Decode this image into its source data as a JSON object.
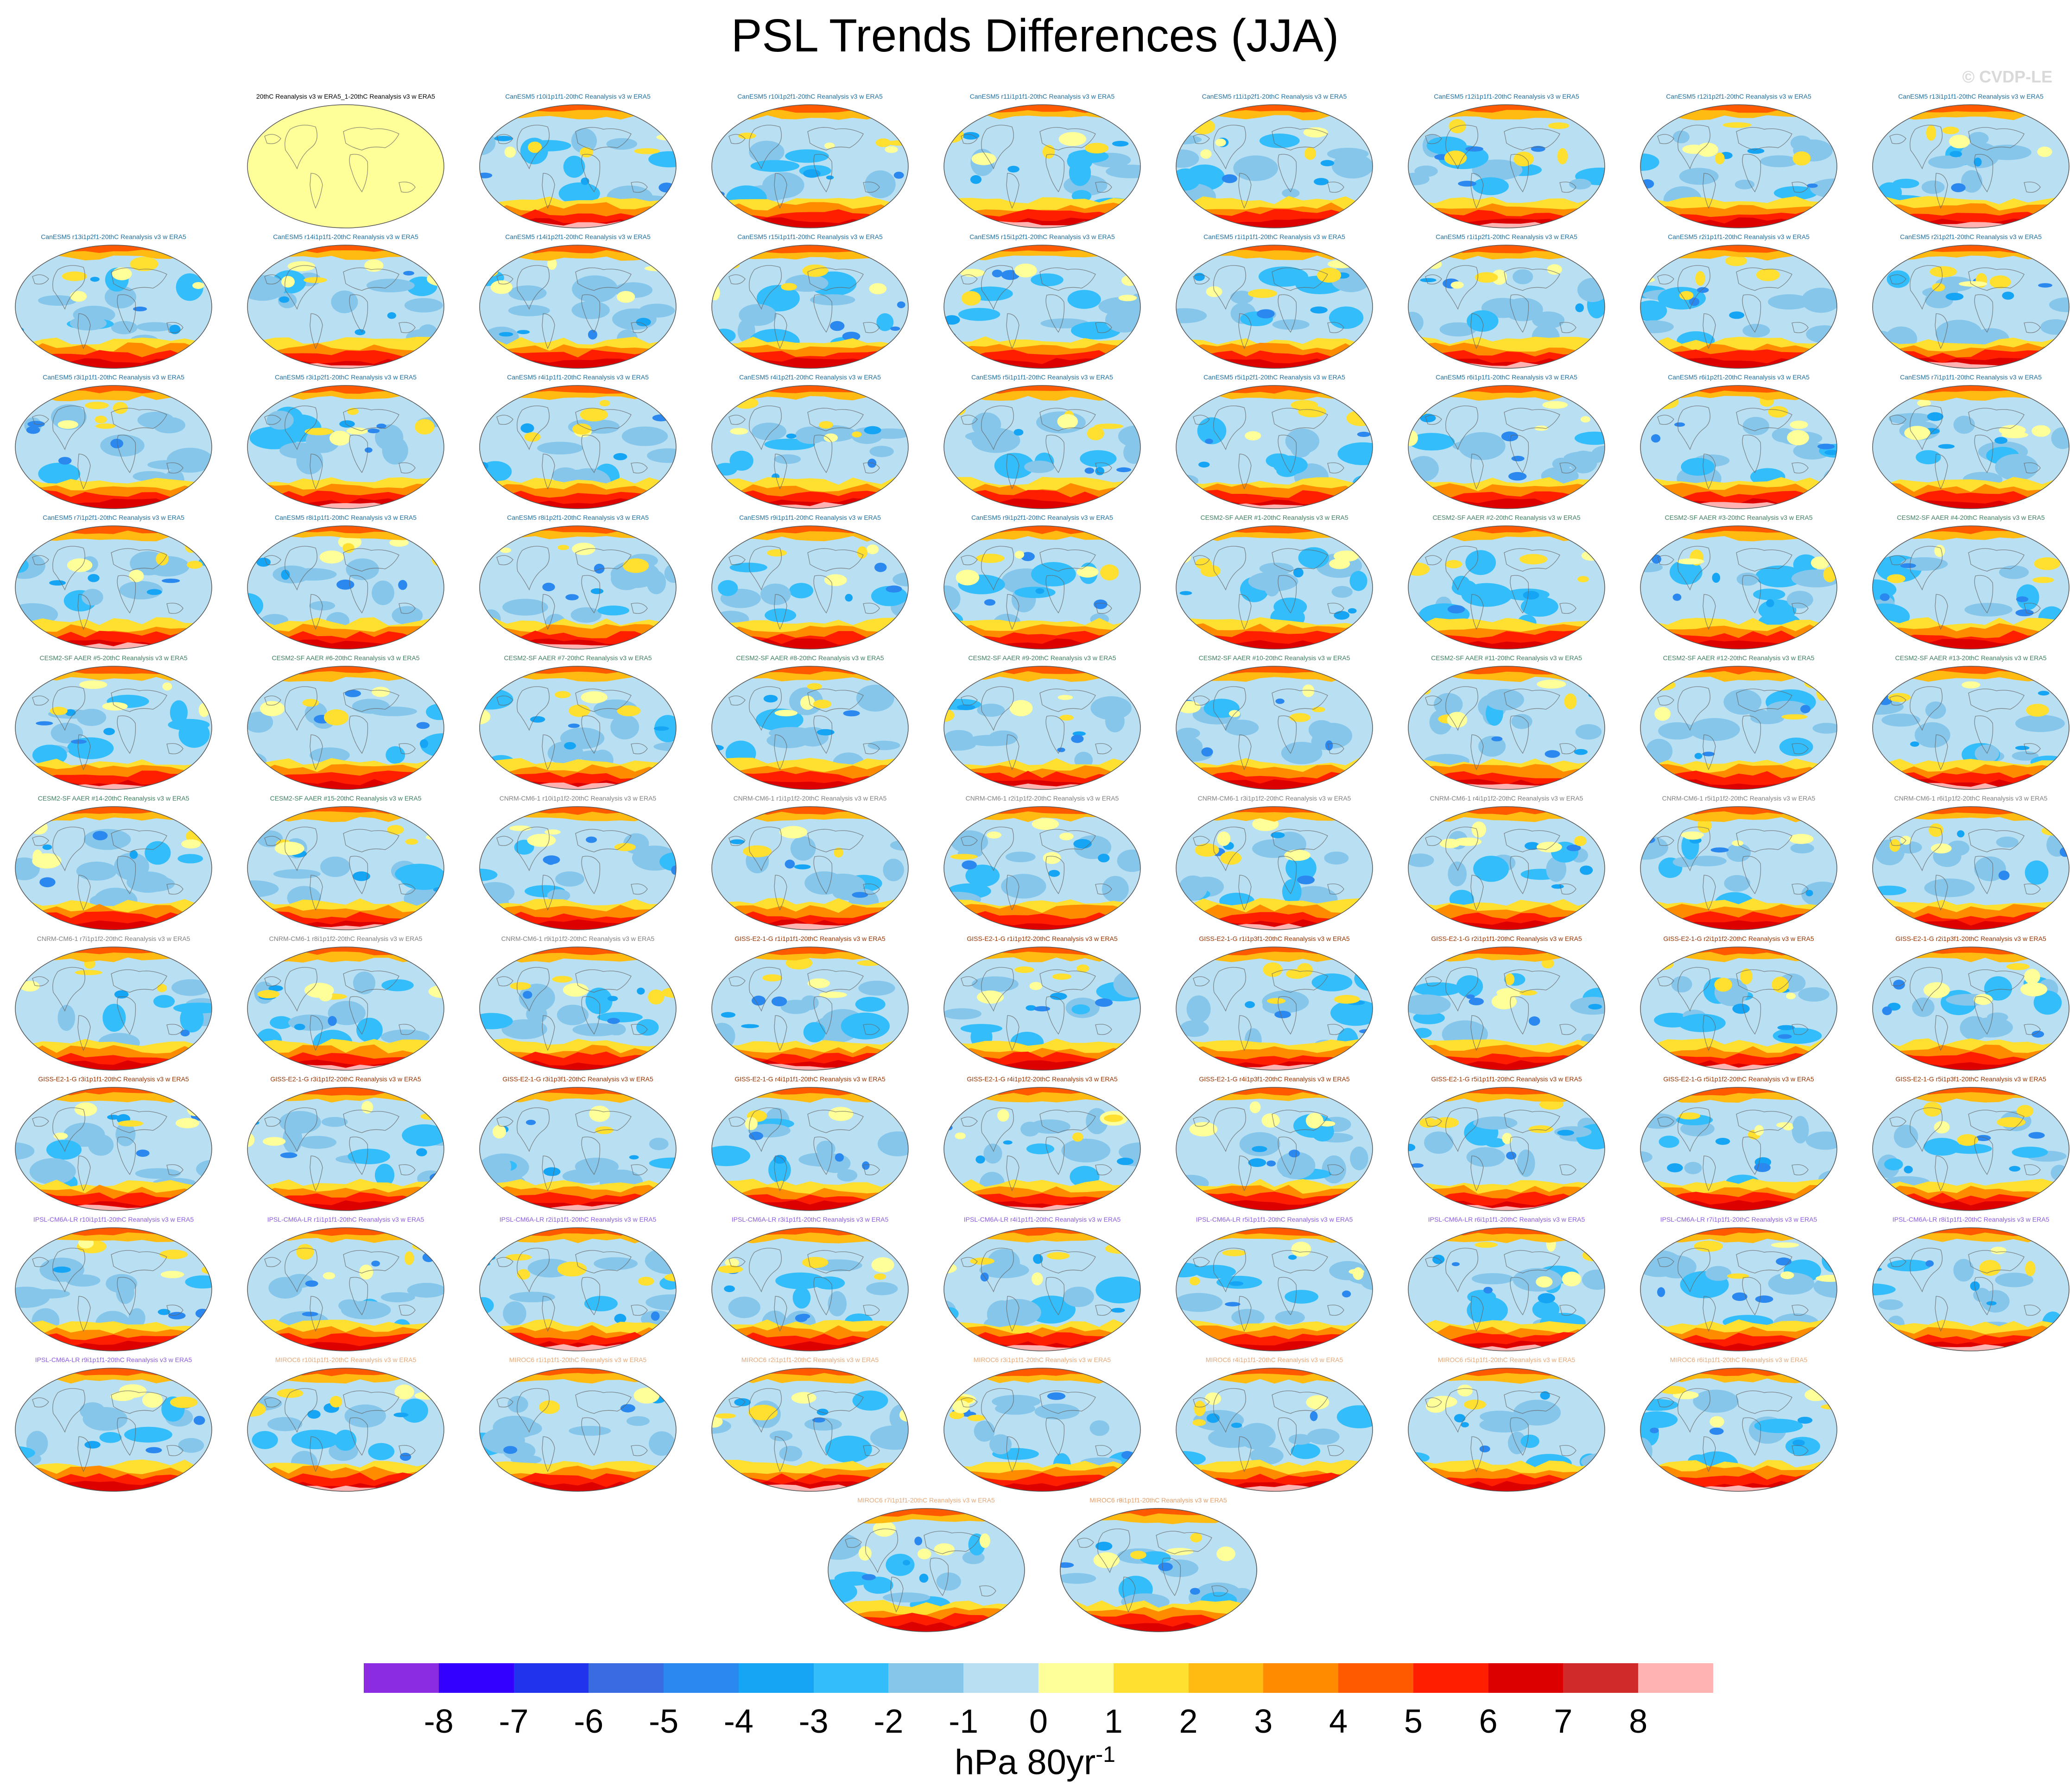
{
  "title": "PSL Trends Differences (JJA)",
  "credit": "© CVDP-LE",
  "units": {
    "base": "hPa 80yr",
    "exponent": "-1"
  },
  "colorbar": {
    "colors": [
      "#8b2be2",
      "#3300ff",
      "#2233ee",
      "#3a6be0",
      "#2b88ee",
      "#16a5f5",
      "#33bdfa",
      "#85c6ea",
      "#b8dff2",
      "#ffff99",
      "#ffe030",
      "#ffbb11",
      "#ff8c00",
      "#ff5a00",
      "#ff1f00",
      "#dd0000",
      "#d12a2a",
      "#ffb3b3"
    ],
    "ticks": [
      "-8",
      "-7",
      "-6",
      "-5",
      "-4",
      "-3",
      "-2",
      "-1",
      "0",
      "1",
      "2",
      "3",
      "4",
      "5",
      "6",
      "7",
      "8"
    ]
  },
  "panels": [
    {
      "label": "20thC Reanalysis v3 w ERA5_1-20thC Reanalysis v3 w ERA5",
      "group": "obs"
    },
    {
      "label": "CanESM5 r10i1p1f1-20thC Reanalysis v3 w ERA5",
      "group": "canesm"
    },
    {
      "label": "CanESM5 r10i1p2f1-20thC Reanalysis v3 w ERA5",
      "group": "canesm"
    },
    {
      "label": "CanESM5 r11i1p1f1-20thC Reanalysis v3 w ERA5",
      "group": "canesm"
    },
    {
      "label": "CanESM5 r11i1p2f1-20thC Reanalysis v3 w ERA5",
      "group": "canesm"
    },
    {
      "label": "CanESM5 r12i1p1f1-20thC Reanalysis v3 w ERA5",
      "group": "canesm"
    },
    {
      "label": "CanESM5 r12i1p2f1-20thC Reanalysis v3 w ERA5",
      "group": "canesm"
    },
    {
      "label": "CanESM5 r13i1p1f1-20thC Reanalysis v3 w ERA5",
      "group": "canesm"
    },
    {
      "label": "CanESM5 r13i1p2f1-20thC Reanalysis v3 w ERA5",
      "group": "canesm"
    },
    {
      "label": "CanESM5 r14i1p1f1-20thC Reanalysis v3 w ERA5",
      "group": "canesm"
    },
    {
      "label": "CanESM5 r14i1p2f1-20thC Reanalysis v3 w ERA5",
      "group": "canesm"
    },
    {
      "label": "CanESM5 r15i1p1f1-20thC Reanalysis v3 w ERA5",
      "group": "canesm"
    },
    {
      "label": "CanESM5 r15i1p2f1-20thC Reanalysis v3 w ERA5",
      "group": "canesm"
    },
    {
      "label": "CanESM5 r1i1p1f1-20thC Reanalysis v3 w ERA5",
      "group": "canesm"
    },
    {
      "label": "CanESM5 r1i1p2f1-20thC Reanalysis v3 w ERA5",
      "group": "canesm"
    },
    {
      "label": "CanESM5 r2i1p1f1-20thC Reanalysis v3 w ERA5",
      "group": "canesm"
    },
    {
      "label": "CanESM5 r2i1p2f1-20thC Reanalysis v3 w ERA5",
      "group": "canesm"
    },
    {
      "label": "CanESM5 r3i1p1f1-20thC Reanalysis v3 w ERA5",
      "group": "canesm"
    },
    {
      "label": "CanESM5 r3i1p2f1-20thC Reanalysis v3 w ERA5",
      "group": "canesm"
    },
    {
      "label": "CanESM5 r4i1p1f1-20thC Reanalysis v3 w ERA5",
      "group": "canesm"
    },
    {
      "label": "CanESM5 r4i1p2f1-20thC Reanalysis v3 w ERA5",
      "group": "canesm"
    },
    {
      "label": "CanESM5 r5i1p1f1-20thC Reanalysis v3 w ERA5",
      "group": "canesm"
    },
    {
      "label": "CanESM5 r5i1p2f1-20thC Reanalysis v3 w ERA5",
      "group": "canesm"
    },
    {
      "label": "CanESM5 r6i1p1f1-20thC Reanalysis v3 w ERA5",
      "group": "canesm"
    },
    {
      "label": "CanESM5 r6i1p2f1-20thC Reanalysis v3 w ERA5",
      "group": "canesm"
    },
    {
      "label": "CanESM5 r7i1p1f1-20thC Reanalysis v3 w ERA5",
      "group": "canesm"
    },
    {
      "label": "CanESM5 r7i1p2f1-20thC Reanalysis v3 w ERA5",
      "group": "canesm"
    },
    {
      "label": "CanESM5 r8i1p1f1-20thC Reanalysis v3 w ERA5",
      "group": "canesm"
    },
    {
      "label": "CanESM5 r8i1p2f1-20thC Reanalysis v3 w ERA5",
      "group": "canesm"
    },
    {
      "label": "CanESM5 r9i1p1f1-20thC Reanalysis v3 w ERA5",
      "group": "canesm"
    },
    {
      "label": "CanESM5 r9i1p2f1-20thC Reanalysis v3 w ERA5",
      "group": "canesm"
    },
    {
      "label": "CESM2-SF AAER #1-20thC Reanalysis v3 w ERA5",
      "group": "cesm"
    },
    {
      "label": "CESM2-SF AAER #2-20thC Reanalysis v3 w ERA5",
      "group": "cesm"
    },
    {
      "label": "CESM2-SF AAER #3-20thC Reanalysis v3 w ERA5",
      "group": "cesm"
    },
    {
      "label": "CESM2-SF AAER #4-20thC Reanalysis v3 w ERA5",
      "group": "cesm"
    },
    {
      "label": "CESM2-SF AAER #5-20thC Reanalysis v3 w ERA5",
      "group": "cesm"
    },
    {
      "label": "CESM2-SF AAER #6-20thC Reanalysis v3 w ERA5",
      "group": "cesm"
    },
    {
      "label": "CESM2-SF AAER #7-20thC Reanalysis v3 w ERA5",
      "group": "cesm"
    },
    {
      "label": "CESM2-SF AAER #8-20thC Reanalysis v3 w ERA5",
      "group": "cesm"
    },
    {
      "label": "CESM2-SF AAER #9-20thC Reanalysis v3 w ERA5",
      "group": "cesm"
    },
    {
      "label": "CESM2-SF AAER #10-20thC Reanalysis v3 w ERA5",
      "group": "cesm"
    },
    {
      "label": "CESM2-SF AAER #11-20thC Reanalysis v3 w ERA5",
      "group": "cesm"
    },
    {
      "label": "CESM2-SF AAER #12-20thC Reanalysis v3 w ERA5",
      "group": "cesm"
    },
    {
      "label": "CESM2-SF AAER #13-20thC Reanalysis v3 w ERA5",
      "group": "cesm"
    },
    {
      "label": "CESM2-SF AAER #14-20thC Reanalysis v3 w ERA5",
      "group": "cesm"
    },
    {
      "label": "CESM2-SF AAER #15-20thC Reanalysis v3 w ERA5",
      "group": "cesm"
    },
    {
      "label": "CNRM-CM6-1 r10i1p1f2-20thC Reanalysis v3 w ERA5",
      "group": "cnrm"
    },
    {
      "label": "CNRM-CM6-1 r1i1p1f2-20thC Reanalysis v3 w ERA5",
      "group": "cnrm"
    },
    {
      "label": "CNRM-CM6-1 r2i1p1f2-20thC Reanalysis v3 w ERA5",
      "group": "cnrm"
    },
    {
      "label": "CNRM-CM6-1 r3i1p1f2-20thC Reanalysis v3 w ERA5",
      "group": "cnrm"
    },
    {
      "label": "CNRM-CM6-1 r4i1p1f2-20thC Reanalysis v3 w ERA5",
      "group": "cnrm"
    },
    {
      "label": "CNRM-CM6-1 r5i1p1f2-20thC Reanalysis v3 w ERA5",
      "group": "cnrm"
    },
    {
      "label": "CNRM-CM6-1 r6i1p1f2-20thC Reanalysis v3 w ERA5",
      "group": "cnrm"
    },
    {
      "label": "CNRM-CM6-1 r7i1p1f2-20thC Reanalysis v3 w ERA5",
      "group": "cnrm"
    },
    {
      "label": "CNRM-CM6-1 r8i1p1f2-20thC Reanalysis v3 w ERA5",
      "group": "cnrm"
    },
    {
      "label": "CNRM-CM6-1 r9i1p1f2-20thC Reanalysis v3 w ERA5",
      "group": "cnrm"
    },
    {
      "label": "GISS-E2-1-G r1i1p1f1-20thC Reanalysis v3 w ERA5",
      "group": "giss"
    },
    {
      "label": "GISS-E2-1-G r1i1p1f2-20thC Reanalysis v3 w ERA5",
      "group": "giss"
    },
    {
      "label": "GISS-E2-1-G r1i1p3f1-20thC Reanalysis v3 w ERA5",
      "group": "giss"
    },
    {
      "label": "GISS-E2-1-G r2i1p1f1-20thC Reanalysis v3 w ERA5",
      "group": "giss"
    },
    {
      "label": "GISS-E2-1-G r2i1p1f2-20thC Reanalysis v3 w ERA5",
      "group": "giss"
    },
    {
      "label": "GISS-E2-1-G r2i1p3f1-20thC Reanalysis v3 w ERA5",
      "group": "giss"
    },
    {
      "label": "GISS-E2-1-G r3i1p1f1-20thC Reanalysis v3 w ERA5",
      "group": "giss"
    },
    {
      "label": "GISS-E2-1-G r3i1p1f2-20thC Reanalysis v3 w ERA5",
      "group": "giss"
    },
    {
      "label": "GISS-E2-1-G r3i1p3f1-20thC Reanalysis v3 w ERA5",
      "group": "giss"
    },
    {
      "label": "GISS-E2-1-G r4i1p1f1-20thC Reanalysis v3 w ERA5",
      "group": "giss"
    },
    {
      "label": "GISS-E2-1-G r4i1p1f2-20thC Reanalysis v3 w ERA5",
      "group": "giss"
    },
    {
      "label": "GISS-E2-1-G r4i1p3f1-20thC Reanalysis v3 w ERA5",
      "group": "giss"
    },
    {
      "label": "GISS-E2-1-G r5i1p1f1-20thC Reanalysis v3 w ERA5",
      "group": "giss"
    },
    {
      "label": "GISS-E2-1-G r5i1p1f2-20thC Reanalysis v3 w ERA5",
      "group": "giss"
    },
    {
      "label": "GISS-E2-1-G r5i1p3f1-20thC Reanalysis v3 w ERA5",
      "group": "giss"
    },
    {
      "label": "IPSL-CM6A-LR r10i1p1f1-20thC Reanalysis v3 w ERA5",
      "group": "ipsl"
    },
    {
      "label": "IPSL-CM6A-LR r1i1p1f1-20thC Reanalysis v3 w ERA5",
      "group": "ipsl"
    },
    {
      "label": "IPSL-CM6A-LR r2i1p1f1-20thC Reanalysis v3 w ERA5",
      "group": "ipsl"
    },
    {
      "label": "IPSL-CM6A-LR r3i1p1f1-20thC Reanalysis v3 w ERA5",
      "group": "ipsl"
    },
    {
      "label": "IPSL-CM6A-LR r4i1p1f1-20thC Reanalysis v3 w ERA5",
      "group": "ipsl"
    },
    {
      "label": "IPSL-CM6A-LR r5i1p1f1-20thC Reanalysis v3 w ERA5",
      "group": "ipsl"
    },
    {
      "label": "IPSL-CM6A-LR r6i1p1f1-20thC Reanalysis v3 w ERA5",
      "group": "ipsl"
    },
    {
      "label": "IPSL-CM6A-LR r7i1p1f1-20thC Reanalysis v3 w ERA5",
      "group": "ipsl"
    },
    {
      "label": "IPSL-CM6A-LR r8i1p1f1-20thC Reanalysis v3 w ERA5",
      "group": "ipsl"
    },
    {
      "label": "IPSL-CM6A-LR r9i1p1f1-20thC Reanalysis v3 w ERA5",
      "group": "ipsl"
    },
    {
      "label": "MIROC6 r10i1p1f1-20thC Reanalysis v3 w ERA5",
      "group": "miroc"
    },
    {
      "label": "MIROC6 r1i1p1f1-20thC Reanalysis v3 w ERA5",
      "group": "miroc"
    },
    {
      "label": "MIROC6 r2i1p1f1-20thC Reanalysis v3 w ERA5",
      "group": "miroc"
    },
    {
      "label": "MIROC6 r3i1p1f1-20thC Reanalysis v3 w ERA5",
      "group": "miroc"
    },
    {
      "label": "MIROC6 r4i1p1f1-20thC Reanalysis v3 w ERA5",
      "group": "miroc"
    },
    {
      "label": "MIROC6 r5i1p1f1-20thC Reanalysis v3 w ERA5",
      "group": "miroc"
    },
    {
      "label": "MIROC6 r6i1p1f1-20thC Reanalysis v3 w ERA5",
      "group": "miroc"
    },
    {
      "label": "MIROC6 r7i1p1f1-20thC Reanalysis v3 w ERA5",
      "group": "miroc"
    },
    {
      "label": "MIROC6 r8i1p1f1-20thC Reanalysis v3 w ERA5",
      "group": "miroc"
    },
    {
      "label": "MIROC6 r9i1p1f1-20thC Reanalysis v3 w ERA5",
      "group": "miroc"
    }
  ],
  "group_colors": {
    "obs": "#000000",
    "canesm": "#1f6fa0",
    "cesm": "#3f7f5f",
    "cnrm": "#808080",
    "giss": "#993300",
    "ipsl": "#8a5ce0",
    "miroc": "#e6a878"
  }
}
